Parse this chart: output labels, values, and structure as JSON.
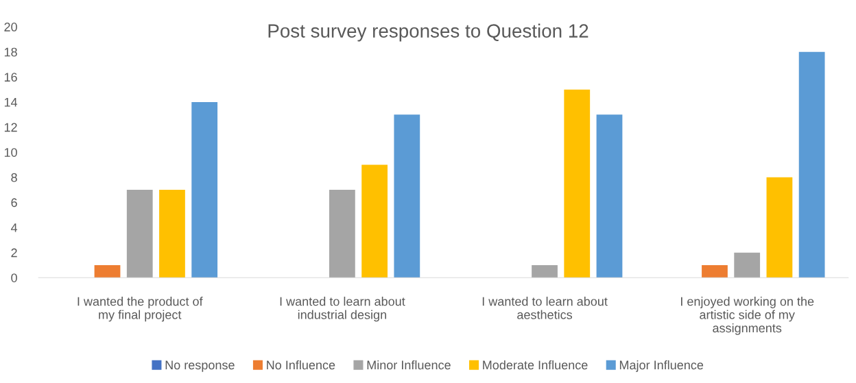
{
  "chart_data": {
    "type": "bar",
    "title": "Post survey responses to Question 12",
    "categories": [
      "I wanted the product of my final project",
      "I wanted to learn about industrial design",
      "I wanted to learn about aesthetics",
      "I enjoyed working on the artistic side of my assignments"
    ],
    "series": [
      {
        "name": "No response",
        "color": "#4472c4",
        "values": [
          0,
          0,
          0,
          0
        ]
      },
      {
        "name": "No Influence",
        "color": "#ed7d31",
        "values": [
          1,
          0,
          0,
          1
        ]
      },
      {
        "name": "Minor Influence",
        "color": "#a5a5a5",
        "values": [
          7,
          7,
          1,
          2
        ]
      },
      {
        "name": "Moderate Influence",
        "color": "#ffc000",
        "values": [
          7,
          9,
          15,
          8
        ]
      },
      {
        "name": "Major Influence",
        "color": "#5b9bd5",
        "values": [
          14,
          13,
          13,
          18
        ]
      }
    ],
    "ylim": [
      0,
      20
    ],
    "yticks": [
      0,
      2,
      4,
      6,
      8,
      10,
      12,
      14,
      16,
      18,
      20
    ],
    "grid": false,
    "legend": "bottom"
  }
}
